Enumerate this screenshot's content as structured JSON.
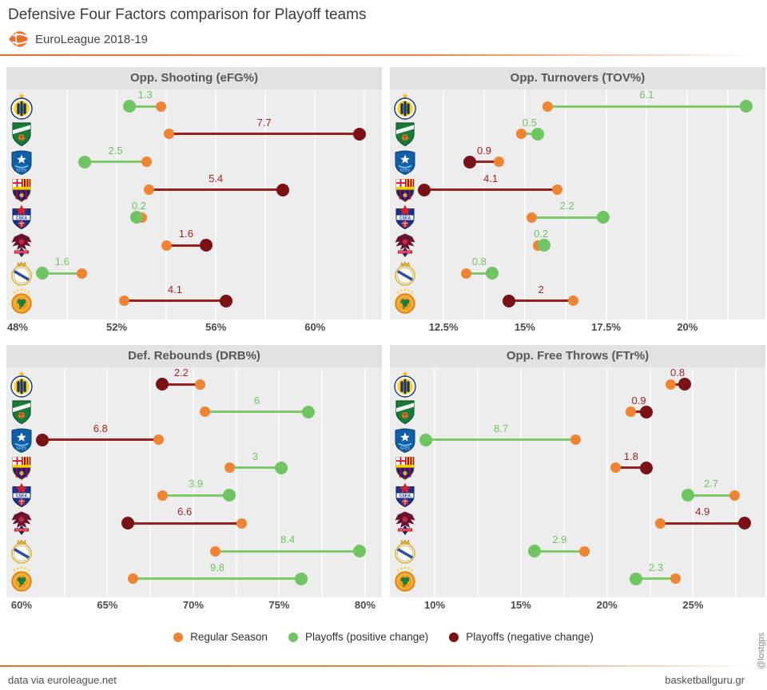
{
  "header": {
    "title": "Defensive Four Factors comparison for Playoff teams",
    "league": "EuroLeague 2018-19"
  },
  "teams": [
    {
      "id": "fenerbahce",
      "name": "Fenerbahce"
    },
    {
      "id": "zalgiris",
      "name": "Zalgiris Kaunas"
    },
    {
      "id": "anadolu-efes",
      "name": "Anadolu Efes"
    },
    {
      "id": "barcelona",
      "name": "FC Barcelona"
    },
    {
      "id": "cska-moscow",
      "name": "CSKA Moscow"
    },
    {
      "id": "baskonia",
      "name": "Baskonia"
    },
    {
      "id": "real-madrid",
      "name": "Real Madrid"
    },
    {
      "id": "panathinaikos",
      "name": "Panathinaikos"
    }
  ],
  "chart_data": [
    {
      "type": "dumbbell",
      "title": "Opp. Shooting (eFG%)",
      "axis": {
        "min": 47.55,
        "max": 62.7,
        "ticks": [
          48,
          52,
          56,
          60
        ],
        "tick_labels": [
          "48%",
          "52%",
          "56%",
          "60%"
        ],
        "gridlines": [
          50,
          52,
          54,
          56,
          58,
          60,
          62
        ]
      },
      "rows": [
        {
          "team": "Fenerbahce",
          "regular_season": 53.8,
          "playoffs": 52.5,
          "change": "1.3",
          "direction": "positive"
        },
        {
          "team": "Zalgiris",
          "regular_season": 54.1,
          "playoffs": 61.8,
          "change": "7.7",
          "direction": "negative"
        },
        {
          "team": "Anadolu Efes",
          "regular_season": 53.2,
          "playoffs": 50.7,
          "change": "2.5",
          "direction": "positive"
        },
        {
          "team": "Barcelona",
          "regular_season": 53.3,
          "playoffs": 58.7,
          "change": "5.4",
          "direction": "negative"
        },
        {
          "team": "CSKA Moscow",
          "regular_season": 53.0,
          "playoffs": 52.8,
          "change": "0.2",
          "direction": "positive"
        },
        {
          "team": "Baskonia",
          "regular_season": 54.0,
          "playoffs": 55.6,
          "change": "1.6",
          "direction": "negative"
        },
        {
          "team": "Real Madrid",
          "regular_season": 50.6,
          "playoffs": 49.0,
          "change": "1.6",
          "direction": "positive"
        },
        {
          "team": "Panathinaikos",
          "regular_season": 52.3,
          "playoffs": 56.4,
          "change": "4.1",
          "direction": "negative"
        }
      ]
    },
    {
      "type": "dumbbell",
      "title": "Opp. Turnovers (TOV%)",
      "axis": {
        "min": 10.85,
        "max": 22.4,
        "ticks": [
          12.5,
          15,
          17.5,
          20
        ],
        "tick_labels": [
          "12.5%",
          "15%",
          "17.5%",
          "20%"
        ],
        "gridlines": [
          12.5,
          13.75,
          15,
          16.25,
          17.5,
          18.75,
          20,
          21.25
        ]
      },
      "rows": [
        {
          "team": "Fenerbahce",
          "regular_season": 15.7,
          "playoffs": 21.8,
          "change": "6.1",
          "direction": "positive"
        },
        {
          "team": "Zalgiris",
          "regular_season": 14.9,
          "playoffs": 15.4,
          "change": "0.5",
          "direction": "positive"
        },
        {
          "team": "Anadolu Efes",
          "regular_season": 14.2,
          "playoffs": 13.3,
          "change": "0.9",
          "direction": "negative"
        },
        {
          "team": "Barcelona",
          "regular_season": 16.0,
          "playoffs": 11.9,
          "change": "4.1",
          "direction": "negative"
        },
        {
          "team": "CSKA Moscow",
          "regular_season": 15.2,
          "playoffs": 17.4,
          "change": "2.2",
          "direction": "positive"
        },
        {
          "team": "Baskonia",
          "regular_season": 15.4,
          "playoffs": 15.6,
          "change": "0.2",
          "direction": "positive"
        },
        {
          "team": "Real Madrid",
          "regular_season": 13.2,
          "playoffs": 14.0,
          "change": "0.8",
          "direction": "positive"
        },
        {
          "team": "Panathinaikos",
          "regular_season": 16.5,
          "playoffs": 14.5,
          "change": "2",
          "direction": "negative"
        }
      ]
    },
    {
      "type": "dumbbell",
      "title": "Def. Rebounds (DRB%)",
      "axis": {
        "min": 59.12,
        "max": 80.98,
        "ticks": [
          60,
          65,
          70,
          75,
          80
        ],
        "tick_labels": [
          "60%",
          "65%",
          "70%",
          "75%",
          "80%"
        ],
        "gridlines": [
          62.5,
          65,
          67.5,
          70,
          72.5,
          75,
          77.5,
          80
        ]
      },
      "rows": [
        {
          "team": "Fenerbahce",
          "regular_season": 70.4,
          "playoffs": 68.2,
          "change": "2.2",
          "direction": "negative"
        },
        {
          "team": "Zalgiris",
          "regular_season": 70.7,
          "playoffs": 76.7,
          "change": "6",
          "direction": "positive"
        },
        {
          "team": "Anadolu Efes",
          "regular_season": 68.0,
          "playoffs": 61.2,
          "change": "6.8",
          "direction": "negative"
        },
        {
          "team": "Barcelona",
          "regular_season": 72.1,
          "playoffs": 75.1,
          "change": "3",
          "direction": "positive"
        },
        {
          "team": "CSKA Moscow",
          "regular_season": 68.2,
          "playoffs": 72.1,
          "change": "3.9",
          "direction": "positive"
        },
        {
          "team": "Baskonia",
          "regular_season": 72.8,
          "playoffs": 66.2,
          "change": "6.6",
          "direction": "negative"
        },
        {
          "team": "Real Madrid",
          "regular_season": 71.3,
          "playoffs": 79.7,
          "change": "8.4",
          "direction": "positive"
        },
        {
          "team": "Panathinaikos",
          "regular_season": 66.5,
          "playoffs": 76.3,
          "change": "9.8",
          "direction": "positive"
        }
      ]
    },
    {
      "type": "dumbbell",
      "title": "Opp. Free Throws (FTr%)",
      "axis": {
        "min": 7.4,
        "max": 29.2,
        "ticks": [
          10,
          15,
          20,
          25
        ],
        "tick_labels": [
          "10%",
          "15%",
          "20%",
          "25%"
        ],
        "gridlines": [
          10,
          12.5,
          15,
          17.5,
          20,
          22.5,
          25,
          27.5
        ]
      },
      "rows": [
        {
          "team": "Fenerbahce",
          "regular_season": 23.7,
          "playoffs": 24.5,
          "change": "0.8",
          "direction": "negative"
        },
        {
          "team": "Zalgiris",
          "regular_season": 21.4,
          "playoffs": 22.3,
          "change": "0.9",
          "direction": "negative"
        },
        {
          "team": "Anadolu Efes",
          "regular_season": 18.2,
          "playoffs": 9.5,
          "change": "8.7",
          "direction": "positive"
        },
        {
          "team": "Barcelona",
          "regular_season": 20.5,
          "playoffs": 22.3,
          "change": "1.8",
          "direction": "negative"
        },
        {
          "team": "CSKA Moscow",
          "regular_season": 27.4,
          "playoffs": 24.7,
          "change": "2.7",
          "direction": "positive"
        },
        {
          "team": "Baskonia",
          "regular_season": 23.1,
          "playoffs": 28.0,
          "change": "4.9",
          "direction": "negative"
        },
        {
          "team": "Real Madrid",
          "regular_season": 18.7,
          "playoffs": 15.8,
          "change": "2.9",
          "direction": "positive"
        },
        {
          "team": "Panathinaikos",
          "regular_season": 24.0,
          "playoffs": 21.7,
          "change": "2.3",
          "direction": "positive"
        }
      ]
    }
  ],
  "legend": [
    {
      "label": "Regular Season",
      "color": "#f08433"
    },
    {
      "label": "Playoffs (positive change)",
      "color": "#6fc562"
    },
    {
      "label": "Playoffs (negative change)",
      "color": "#7a1114"
    }
  ],
  "footer": {
    "left": "data via euroleague.net",
    "right": "basketballguru.gr",
    "handle": "@lostgps"
  },
  "colors": {
    "accent_orange": "#e8702a",
    "regular_dot": "#f08433",
    "positive_dot": "#6fc562",
    "positive_line": "#7ecb6d",
    "positive_label": "#6cc75f",
    "negative_dot": "#7a1114",
    "negative_line": "#96211f",
    "negative_label": "#a32222"
  }
}
